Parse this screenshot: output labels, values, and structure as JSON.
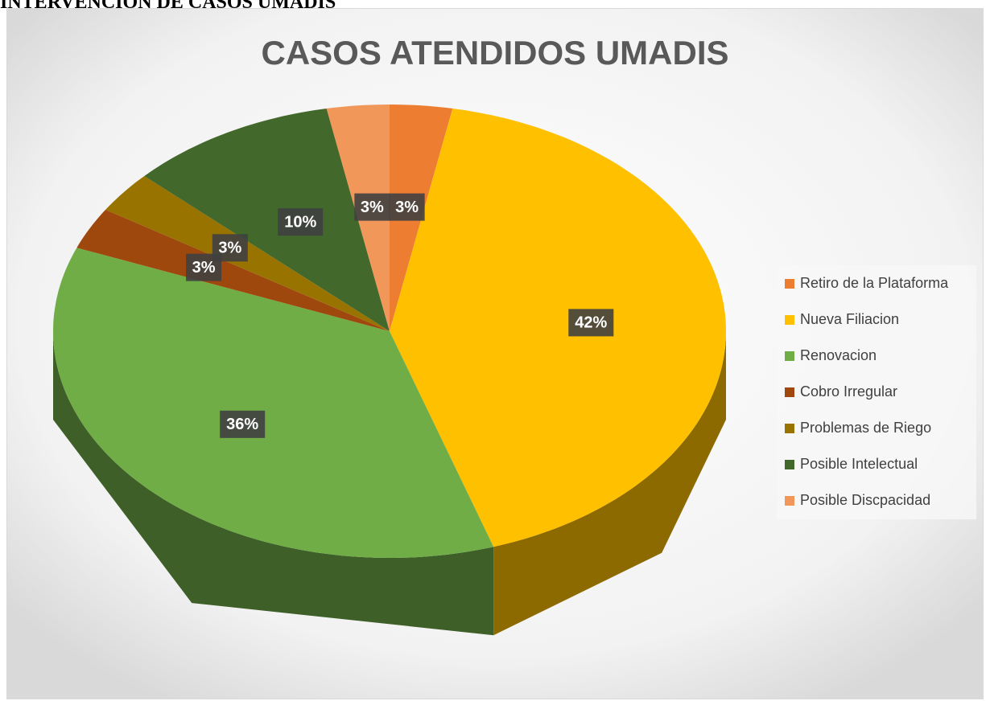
{
  "header": "INTERVENCION DE CASOS UMADIS",
  "chart_data": {
    "type": "pie3d",
    "title": "CASOS ATENDIDOS UMADIS",
    "categories": [
      "Retiro de la Plataforma",
      "Nueva Filiacion",
      "Renovacion",
      "Cobro Irregular",
      "Problemas de Riego",
      "Posible Intelectual",
      "Posible Discpacidad"
    ],
    "values": [
      3,
      42,
      36,
      3,
      3,
      10,
      3
    ],
    "value_labels": [
      "3%",
      "42%",
      "36%",
      "3%",
      "3%",
      "10%",
      "3%"
    ],
    "colors": [
      "#ed7d31",
      "#ffc000",
      "#70ad47",
      "#9e480e",
      "#997300",
      "#43682b",
      "#f1975a"
    ],
    "legend": "right"
  }
}
